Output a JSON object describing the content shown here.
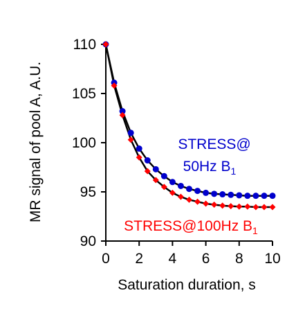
{
  "chart_data": {
    "type": "line",
    "xlabel": "Saturation duration, s",
    "ylabel": "MR signal of pool A, A.U.",
    "xlim": [
      0,
      10
    ],
    "ylim": [
      90,
      110
    ],
    "xticks": [
      0,
      2,
      4,
      6,
      8,
      10
    ],
    "yticks": [
      90,
      95,
      100,
      105,
      110
    ],
    "grid": false,
    "colors": {
      "series_50hz": "#0000cc",
      "series_100hz": "#ff0000",
      "model_line": "#000000"
    },
    "annotations": [
      {
        "main": "STRESS@",
        "line2": "50Hz B",
        "sub": "1",
        "color": "#0000cc"
      },
      {
        "main": "STRESS@100Hz B",
        "sub": "1",
        "color": "#ff0000"
      }
    ],
    "series": [
      {
        "marker": "circle",
        "color": "#0000cc",
        "x": [
          0,
          0.5,
          1,
          1.5,
          2,
          2.5,
          3,
          3.5,
          4,
          4.5,
          5,
          5.5,
          6,
          6.5,
          7,
          7.5,
          8,
          8.5,
          9,
          9.5,
          10
        ],
        "y": [
          110,
          106.1,
          103.2,
          101.0,
          99.4,
          98.2,
          97.3,
          96.6,
          96.0,
          95.6,
          95.3,
          95.1,
          94.9,
          94.8,
          94.75,
          94.7,
          94.65,
          94.6,
          94.6,
          94.6,
          94.6
        ]
      },
      {
        "marker": "diamond",
        "color": "#ff0000",
        "x": [
          0,
          0.5,
          1,
          1.5,
          2,
          2.5,
          3,
          3.5,
          4,
          4.5,
          5,
          5.5,
          6,
          6.5,
          7,
          7.5,
          8,
          8.5,
          9,
          9.5,
          10
        ],
        "y": [
          110,
          105.8,
          102.8,
          100.3,
          98.5,
          97.1,
          96.2,
          95.5,
          94.9,
          94.5,
          94.2,
          94.0,
          93.8,
          93.7,
          93.6,
          93.55,
          93.5,
          93.5,
          93.45,
          93.45,
          93.45
        ]
      }
    ]
  }
}
